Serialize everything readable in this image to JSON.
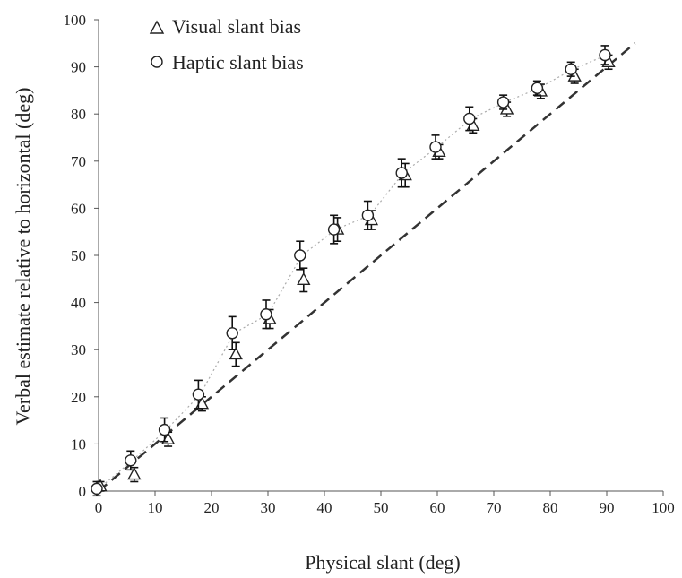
{
  "chart_data": {
    "type": "scatter",
    "xlabel": "Physical slant (deg)",
    "ylabel": "Verbal estimate relative to horizontal (deg)",
    "xlim": [
      0,
      100
    ],
    "ylim": [
      0,
      100
    ],
    "xticks": [
      "0",
      "10",
      "20",
      "30",
      "40",
      "50",
      "60",
      "70",
      "80",
      "90",
      "100"
    ],
    "yticks": [
      "0",
      "10",
      "20",
      "30",
      "40",
      "50",
      "60",
      "70",
      "80",
      "90",
      "100"
    ],
    "grid": false,
    "legend": {
      "position": "top-left"
    },
    "reference_line": {
      "style": "dashed",
      "from": [
        0,
        0
      ],
      "to": [
        95,
        95
      ]
    },
    "series": [
      {
        "name": "Visual slant bias",
        "marker": "triangle",
        "x": [
          0,
          6,
          12,
          18,
          24,
          30,
          36,
          42,
          48,
          54,
          60,
          66,
          72,
          78,
          84,
          90
        ],
        "y": [
          1.0,
          3.5,
          11.0,
          18.5,
          29.0,
          36.5,
          44.8,
          55.5,
          57.5,
          67.0,
          72.0,
          77.5,
          81.0,
          84.8,
          88.0,
          91.0
        ],
        "err": [
          1.0,
          1.5,
          1.5,
          1.5,
          2.5,
          2.0,
          2.5,
          2.5,
          2.0,
          2.5,
          1.5,
          1.5,
          1.5,
          1.5,
          1.5,
          1.5
        ]
      },
      {
        "name": "Haptic slant bias",
        "marker": "circle",
        "x": [
          0,
          6,
          12,
          18,
          24,
          30,
          36,
          42,
          48,
          54,
          60,
          66,
          72,
          78,
          84,
          90
        ],
        "y": [
          0.5,
          6.5,
          13.0,
          20.5,
          33.5,
          37.5,
          50.0,
          55.5,
          58.5,
          67.5,
          73.0,
          79.0,
          82.5,
          85.5,
          89.5,
          92.5
        ],
        "err": [
          1.5,
          2.0,
          2.5,
          3.0,
          3.5,
          3.0,
          3.0,
          3.0,
          3.0,
          3.0,
          2.5,
          2.5,
          1.5,
          1.5,
          1.5,
          2.0
        ]
      }
    ]
  }
}
